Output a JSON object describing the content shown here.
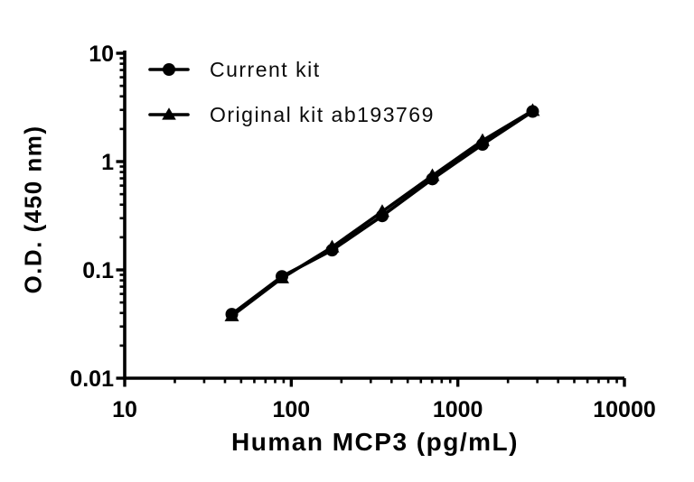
{
  "figure": {
    "background": "#ffffff",
    "ink_color": "#000000"
  },
  "chart_data": {
    "type": "line",
    "title": "",
    "xlabel": "Human MCP3 (pg/mL)",
    "ylabel": "O.D. (450 nm)",
    "x_scale": "log",
    "y_scale": "log",
    "xlim": [
      10,
      10000
    ],
    "ylim": [
      0.01,
      10
    ],
    "x_ticks": [
      10,
      100,
      1000,
      10000
    ],
    "x_tick_labels": [
      "10",
      "100",
      "1000",
      "10000"
    ],
    "y_ticks": [
      0.01,
      0.1,
      1,
      10
    ],
    "y_tick_labels": [
      "0.01",
      "0.1",
      "1",
      "10"
    ],
    "grid": false,
    "legend_position": "inside-top-left",
    "x": [
      43.95,
      87.89,
      175.78,
      351.56,
      703.13,
      1406.25,
      2812.5
    ],
    "series": [
      {
        "name": "Current kit",
        "marker": "circle",
        "color": "#000000",
        "values": [
          0.039,
          0.087,
          0.152,
          0.315,
          0.69,
          1.44,
          2.9
        ]
      },
      {
        "name": "Original kit ab193769",
        "marker": "triangle",
        "color": "#000000",
        "values": [
          0.0375,
          0.084,
          0.162,
          0.345,
          0.74,
          1.56,
          2.95
        ]
      }
    ]
  }
}
